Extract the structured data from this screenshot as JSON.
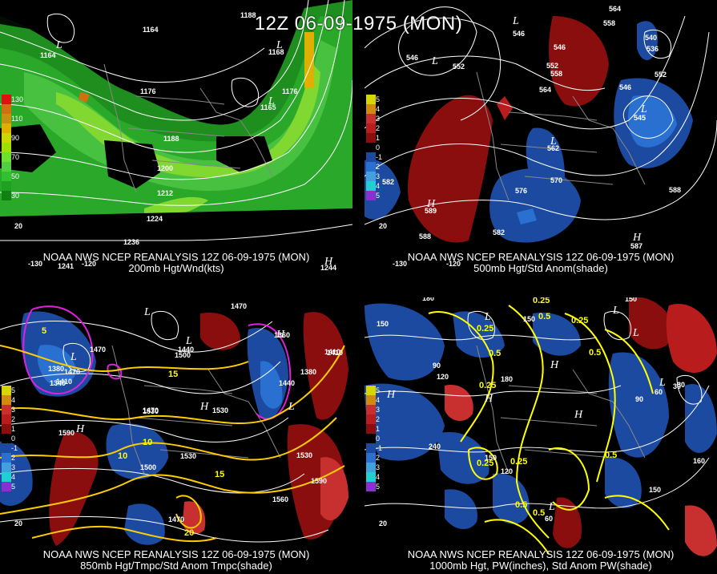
{
  "title": "12Z 06-09-1975 (MON)",
  "panels": [
    {
      "caption1": "NOAA NWS NCEP REANALYSIS 12Z 06-09-1975 (MON)",
      "caption2": "200mb Hgt/Wnd(kts)",
      "legend": [
        {
          "label": "130",
          "color": "#e01010"
        },
        {
          "label": "",
          "color": "#d07010"
        },
        {
          "label": "110",
          "color": "#c89010"
        },
        {
          "label": "",
          "color": "#e0b000"
        },
        {
          "label": "90",
          "color": "#c8d800"
        },
        {
          "label": "",
          "color": "#a0e000"
        },
        {
          "label": "70",
          "color": "#70e030"
        },
        {
          "label": "",
          "color": "#50d040"
        },
        {
          "label": "50",
          "color": "#30c030"
        },
        {
          "label": "",
          "color": "#20a020"
        },
        {
          "label": "30",
          "color": "#108010"
        }
      ],
      "contour_labels": [
        "1188",
        "1164",
        "1164",
        "1168",
        "1176",
        "1176",
        "1188",
        "1200",
        "1212",
        "1224",
        "1236",
        "1165",
        "1241",
        "1244"
      ],
      "lon_labels": [
        "-130",
        "-120"
      ],
      "lat_labels": [
        "20"
      ]
    },
    {
      "caption1": "NOAA NWS NCEP REANALYSIS 12Z 06-09-1975 (MON)",
      "caption2": "500mb Hgt/Std Anom(shade)",
      "legend": [
        {
          "label": "5",
          "color": "#d6d600"
        },
        {
          "label": "4",
          "color": "#d08a10"
        },
        {
          "label": "3",
          "color": "#c83030"
        },
        {
          "label": "2",
          "color": "#b81c1c"
        },
        {
          "label": "1",
          "color": "#8a0e0e"
        },
        {
          "label": "0",
          "color": "#000000"
        },
        {
          "label": "-1",
          "color": "#1c4aa0"
        },
        {
          "label": "2",
          "color": "#2a70d0"
        },
        {
          "label": "3",
          "color": "#40a0e0"
        },
        {
          "label": "4",
          "color": "#20d0d0"
        },
        {
          "label": "5",
          "color": "#8a30d0"
        }
      ],
      "contour_labels": [
        "564",
        "558",
        "540",
        "546",
        "546",
        "536",
        "546",
        "552",
        "552",
        "558",
        "564",
        "546",
        "552",
        "545",
        "562",
        "570",
        "576",
        "588",
        "582",
        "589",
        "587",
        "588",
        "582"
      ],
      "lon_labels": [
        "-130",
        "-120"
      ],
      "lat_labels": [
        "20"
      ]
    },
    {
      "caption1": "NOAA NWS NCEP REANALYSIS 12Z 06-09-1975 (MON)",
      "caption2": "850mb Hgt/Tmpc/Std Anom Tmpc(shade)",
      "legend": [
        {
          "label": "5",
          "color": "#d6d600"
        },
        {
          "label": "4",
          "color": "#d08a10"
        },
        {
          "label": "3",
          "color": "#c83030"
        },
        {
          "label": "2",
          "color": "#b81c1c"
        },
        {
          "label": "1",
          "color": "#8a0e0e"
        },
        {
          "label": "0",
          "color": "#000000"
        },
        {
          "label": "-1",
          "color": "#1c4aa0"
        },
        {
          "label": "2",
          "color": "#2a70d0"
        },
        {
          "label": "3",
          "color": "#40a0e0"
        },
        {
          "label": "4",
          "color": "#20d0d0"
        },
        {
          "label": "5",
          "color": "#8a30d0"
        }
      ],
      "contour_labels": [
        "1470",
        "1470",
        "1440",
        "1500",
        "1470",
        "1410",
        "1380",
        "1340",
        "1410",
        "1470",
        "1530",
        "1530",
        "1590",
        "1500",
        "1530",
        "1560",
        "1470",
        "1530",
        "1590",
        "1380",
        "1440",
        "1410",
        "1360"
      ],
      "temp_labels": [
        "5",
        "10",
        "10",
        "15",
        "15",
        "20"
      ],
      "lat_labels": [
        "20"
      ]
    },
    {
      "caption1": "NOAA NWS NCEP REANALYSIS 12Z 06-09-1975 (MON)",
      "caption2": "1000mb Hgt, PW(inches), Std Anom PW(shade)",
      "legend": [
        {
          "label": "5",
          "color": "#d6d600"
        },
        {
          "label": "4",
          "color": "#d08a10"
        },
        {
          "label": "3",
          "color": "#c83030"
        },
        {
          "label": "2",
          "color": "#b81c1c"
        },
        {
          "label": "1",
          "color": "#8a0e0e"
        },
        {
          "label": "0",
          "color": "#000000"
        },
        {
          "label": "-1",
          "color": "#1c4aa0"
        },
        {
          "label": "2",
          "color": "#2a70d0"
        },
        {
          "label": "3",
          "color": "#40a0e0"
        },
        {
          "label": "4",
          "color": "#20d0d0"
        },
        {
          "label": "5",
          "color": "#8a30d0"
        }
      ],
      "contour_labels": [
        "180",
        "150",
        "150",
        "90",
        "60",
        "120",
        "180",
        "90",
        "30",
        "150",
        "120",
        "240",
        "150",
        "160",
        "150",
        "60",
        "30"
      ],
      "pw_labels": [
        "0.25",
        "0.5",
        "0.25",
        "0.25",
        "0.5",
        "0.5",
        "0.25",
        "0.25",
        "0.25",
        "0.5",
        "0.5",
        "0.5"
      ],
      "lat_labels": [
        "20"
      ]
    }
  ],
  "colors": {
    "background": "#000000",
    "contour": "#ffffff",
    "temp_contour": "#ffcc00",
    "anom_contour": "#e020e0",
    "pw_contour": "#ffff00",
    "map_lines": "#888888"
  }
}
